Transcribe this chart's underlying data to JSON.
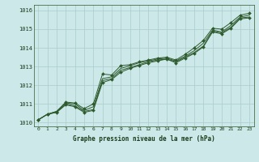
{
  "title": "Graphe pression niveau de la mer (hPa)",
  "background_color": "#cce8e8",
  "plot_bg_color": "#cce8e8",
  "grid_color": "#aacccc",
  "line_color": "#2d5a2d",
  "marker_color": "#2d5a2d",
  "xlim": [
    -0.5,
    23.5
  ],
  "ylim": [
    1009.8,
    1016.3
  ],
  "yticks": [
    1010,
    1011,
    1012,
    1013,
    1014,
    1015,
    1016
  ],
  "xticks": [
    0,
    1,
    2,
    3,
    4,
    5,
    6,
    7,
    8,
    9,
    10,
    11,
    12,
    13,
    14,
    15,
    16,
    17,
    18,
    19,
    20,
    21,
    22,
    23
  ],
  "line1": [
    1010.15,
    1010.45,
    1010.6,
    1011.1,
    1011.05,
    1010.75,
    1011.0,
    1012.6,
    1012.55,
    1013.05,
    1013.1,
    1013.25,
    1013.35,
    1013.45,
    1013.5,
    1013.35,
    1013.65,
    1014.0,
    1014.4,
    1015.05,
    1015.0,
    1015.35,
    1015.75,
    1015.85
  ],
  "line2": [
    1010.15,
    1010.45,
    1010.6,
    1011.05,
    1011.0,
    1010.65,
    1010.85,
    1012.35,
    1012.45,
    1012.9,
    1013.05,
    1013.2,
    1013.3,
    1013.4,
    1013.45,
    1013.3,
    1013.55,
    1013.85,
    1014.25,
    1014.95,
    1014.85,
    1015.2,
    1015.65,
    1015.75
  ],
  "line3": [
    1010.15,
    1010.45,
    1010.55,
    1011.0,
    1010.9,
    1010.6,
    1010.7,
    1012.25,
    1012.35,
    1012.8,
    1012.95,
    1013.1,
    1013.25,
    1013.35,
    1013.4,
    1013.25,
    1013.5,
    1013.75,
    1014.1,
    1014.9,
    1014.8,
    1015.1,
    1015.6,
    1015.65
  ],
  "line4": [
    1010.15,
    1010.45,
    1010.55,
    1010.95,
    1010.85,
    1010.55,
    1010.65,
    1012.15,
    1012.3,
    1012.7,
    1012.9,
    1013.05,
    1013.2,
    1013.3,
    1013.4,
    1013.2,
    1013.45,
    1013.7,
    1014.05,
    1014.85,
    1014.75,
    1015.05,
    1015.55,
    1015.6
  ]
}
